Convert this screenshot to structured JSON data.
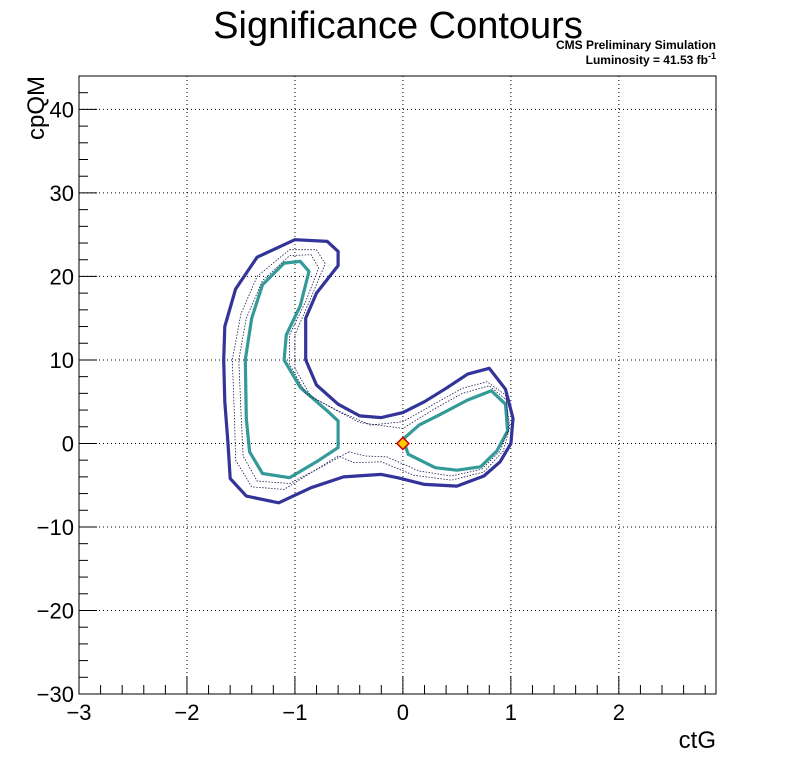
{
  "chart_data": {
    "type": "contour",
    "title": "Significance Contours",
    "annotations": {
      "line1": "CMS Preliminary Simulation",
      "line2_prefix": "Luminosity = 41.53 fb",
      "line2_sup": "-1"
    },
    "xlabel": "ctG",
    "ylabel": "cpQM",
    "xlim": [
      -3,
      2.9
    ],
    "ylim": [
      -30,
      44
    ],
    "xticks": [
      -3,
      -2,
      -1,
      0,
      1,
      2
    ],
    "xtick_labels": [
      "−3",
      "−2",
      "−1",
      "0",
      "1",
      "2"
    ],
    "yticks": [
      -30,
      -20,
      -10,
      0,
      10,
      20,
      30,
      40
    ],
    "ytick_labels": [
      "−30",
      "−20",
      "−10",
      "0",
      "10",
      "20",
      "30",
      "40"
    ],
    "grid": true,
    "colors": {
      "outer": "#333399",
      "inner": "#339999",
      "thin": "#1a1a4d",
      "marker_fill": "#ffcc00",
      "marker_edge": "#cc0000"
    },
    "contours": [
      {
        "style": "outer",
        "points": [
          [
            -0.2,
            -3.7
          ],
          [
            -0.55,
            -4.0
          ],
          [
            -0.85,
            -5.3
          ],
          [
            -1.15,
            -7.1
          ],
          [
            -1.45,
            -6.3
          ],
          [
            -1.6,
            -4.2
          ],
          [
            -1.62,
            0
          ],
          [
            -1.65,
            5
          ],
          [
            -1.66,
            10
          ],
          [
            -1.65,
            14
          ],
          [
            -1.55,
            18.5
          ],
          [
            -1.35,
            22.3
          ],
          [
            -1.0,
            24.4
          ],
          [
            -0.7,
            24.2
          ],
          [
            -0.6,
            23.0
          ],
          [
            -0.6,
            21.3
          ],
          [
            -0.8,
            18
          ],
          [
            -0.9,
            15
          ],
          [
            -0.9,
            10
          ],
          [
            -0.8,
            7
          ],
          [
            -0.6,
            4.7
          ],
          [
            -0.4,
            3.3
          ],
          [
            -0.2,
            3.1
          ],
          [
            0.0,
            3.7
          ],
          [
            0.2,
            5
          ],
          [
            0.4,
            6.6
          ],
          [
            0.6,
            8.3
          ],
          [
            0.8,
            9.0
          ],
          [
            0.95,
            6.5
          ],
          [
            1.02,
            3
          ],
          [
            1.0,
            0
          ],
          [
            0.9,
            -2.2
          ],
          [
            0.75,
            -3.9
          ],
          [
            0.5,
            -5.1
          ],
          [
            0.2,
            -4.9
          ],
          [
            -0.05,
            -4.1
          ],
          [
            -0.2,
            -3.7
          ]
        ]
      },
      {
        "style": "inner",
        "points": [
          [
            -0.6,
            -0.5
          ],
          [
            -0.8,
            -2.2
          ],
          [
            -1.05,
            -4.1
          ],
          [
            -1.3,
            -3.6
          ],
          [
            -1.42,
            -1
          ],
          [
            -1.45,
            3
          ],
          [
            -1.46,
            10
          ],
          [
            -1.4,
            15
          ],
          [
            -1.3,
            19
          ],
          [
            -1.1,
            21.6
          ],
          [
            -0.95,
            21.8
          ],
          [
            -0.87,
            20.6
          ],
          [
            -0.95,
            16.5
          ],
          [
            -1.08,
            13
          ],
          [
            -1.1,
            10
          ],
          [
            -0.95,
            6.7
          ],
          [
            -0.7,
            3.9
          ],
          [
            -0.6,
            2.7
          ],
          [
            -0.6,
            -0.5
          ]
        ]
      },
      {
        "style": "inner",
        "points": [
          [
            0.0,
            0.5
          ],
          [
            0.15,
            2.2
          ],
          [
            0.35,
            3.5
          ],
          [
            0.6,
            5.2
          ],
          [
            0.82,
            6.3
          ],
          [
            0.95,
            4.7
          ],
          [
            0.97,
            1.5
          ],
          [
            0.87,
            -0.9
          ],
          [
            0.72,
            -2.8
          ],
          [
            0.5,
            -3.2
          ],
          [
            0.3,
            -2.9
          ],
          [
            0.05,
            -1.3
          ],
          [
            0.0,
            0.5
          ]
        ]
      },
      {
        "style": "thin",
        "points": [
          [
            -0.6,
            -1.5
          ],
          [
            -0.85,
            -3.5
          ],
          [
            -1.1,
            -5.5
          ],
          [
            -1.4,
            -5.2
          ],
          [
            -1.55,
            -2
          ],
          [
            -1.56,
            3
          ],
          [
            -1.58,
            10
          ],
          [
            -1.5,
            15.5
          ],
          [
            -1.35,
            20
          ],
          [
            -1.05,
            23.2
          ],
          [
            -0.8,
            23.2
          ],
          [
            -0.72,
            21.5
          ],
          [
            -0.85,
            17.5
          ],
          [
            -1.0,
            13
          ],
          [
            -1.0,
            9
          ],
          [
            -0.85,
            5.6
          ],
          [
            -0.6,
            3.9
          ],
          [
            -0.3,
            2.2
          ],
          [
            0.0,
            2.6
          ],
          [
            0.3,
            4.8
          ],
          [
            0.55,
            6.6
          ],
          [
            0.78,
            7.4
          ],
          [
            0.95,
            5.8
          ],
          [
            0.99,
            2
          ],
          [
            0.93,
            -0.9
          ],
          [
            0.75,
            -3.4
          ],
          [
            0.45,
            -4.4
          ],
          [
            0.1,
            -3.8
          ],
          [
            -0.2,
            -2.2
          ],
          [
            -0.45,
            -2.3
          ],
          [
            -0.6,
            -1.5
          ]
        ]
      },
      {
        "style": "thin",
        "points": [
          [
            -0.5,
            -1.0
          ],
          [
            -0.75,
            -2.8
          ],
          [
            -1.05,
            -4.8
          ],
          [
            -1.35,
            -4.5
          ],
          [
            -1.48,
            -1.5
          ],
          [
            -1.5,
            4
          ],
          [
            -1.52,
            10
          ],
          [
            -1.45,
            15
          ],
          [
            -1.3,
            19.5
          ],
          [
            -1.05,
            22.5
          ],
          [
            -0.85,
            22.6
          ],
          [
            -0.78,
            21
          ],
          [
            -0.9,
            17
          ],
          [
            -1.05,
            13
          ],
          [
            -1.05,
            9.5
          ],
          [
            -0.9,
            6
          ],
          [
            -0.65,
            4.2
          ],
          [
            -0.4,
            2.5
          ],
          [
            0.0,
            1.8
          ],
          [
            0.3,
            4.2
          ],
          [
            0.55,
            6.0
          ],
          [
            0.8,
            6.9
          ],
          [
            0.96,
            5.2
          ],
          [
            0.98,
            1.8
          ],
          [
            0.9,
            -0.9
          ],
          [
            0.73,
            -3.1
          ],
          [
            0.45,
            -3.9
          ],
          [
            0.15,
            -3.3
          ],
          [
            -0.15,
            -1.6
          ],
          [
            -0.35,
            -1.5
          ],
          [
            -0.5,
            -1.0
          ]
        ]
      }
    ],
    "best_fit": {
      "x": 0.0,
      "y": 0.0
    }
  }
}
